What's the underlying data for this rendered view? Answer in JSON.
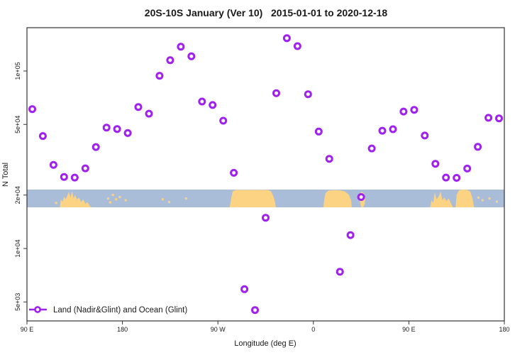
{
  "legend": {
    "label": "Land (Nadir&Glint) and Ocean (Glint)"
  },
  "chart_data": {
    "type": "scatter",
    "title": "20S-10S January (Ver 10)   2015-01-01 to 2020-12-18",
    "xlabel": "Longitude (deg E)",
    "ylabel": "N Total",
    "x_axis": {
      "range_deg": [
        90,
        540
      ],
      "note": "longitude axis wraps: 90E -> 180 -> 90W -> 0 -> 90E -> 180",
      "ticks": [
        {
          "deg": 90,
          "label": "90 E"
        },
        {
          "deg": 180,
          "label": "180"
        },
        {
          "deg": 270,
          "label": "90 W"
        },
        {
          "deg": 360,
          "label": "0"
        },
        {
          "deg": 450,
          "label": "90 E"
        },
        {
          "deg": 540,
          "label": "180"
        }
      ]
    },
    "y_axis": {
      "scale": "log10",
      "range": [
        3900,
        176000
      ],
      "ticks": [
        {
          "value": 5000,
          "label": "5e+03"
        },
        {
          "value": 10000,
          "label": "1e+04"
        },
        {
          "value": 20000,
          "label": "2e+04"
        },
        {
          "value": 50000,
          "label": "5e+04"
        },
        {
          "value": 100000,
          "label": "1e+05"
        }
      ]
    },
    "colors": {
      "marker": "#A020F0",
      "axis": "#333333"
    },
    "series": [
      {
        "name": "Land (Nadir&Glint) and Ocean (Glint)",
        "marker": "open-circle",
        "color": "#A020F0",
        "points": [
          {
            "lon_deg": 95,
            "n_total": 61000
          },
          {
            "lon_deg": 105,
            "n_total": 43000
          },
          {
            "lon_deg": 115,
            "n_total": 29600
          },
          {
            "lon_deg": 125,
            "n_total": 25300
          },
          {
            "lon_deg": 135,
            "n_total": 25100
          },
          {
            "lon_deg": 145,
            "n_total": 28300
          },
          {
            "lon_deg": 155,
            "n_total": 37300
          },
          {
            "lon_deg": 165,
            "n_total": 48000
          },
          {
            "lon_deg": 175,
            "n_total": 47100
          },
          {
            "lon_deg": 185,
            "n_total": 44700
          },
          {
            "lon_deg": 195,
            "n_total": 62700
          },
          {
            "lon_deg": 205,
            "n_total": 57500
          },
          {
            "lon_deg": 215,
            "n_total": 94000
          },
          {
            "lon_deg": 225,
            "n_total": 115000
          },
          {
            "lon_deg": 235,
            "n_total": 137000
          },
          {
            "lon_deg": 245,
            "n_total": 121000
          },
          {
            "lon_deg": 255,
            "n_total": 67300
          },
          {
            "lon_deg": 265,
            "n_total": 64300
          },
          {
            "lon_deg": 275,
            "n_total": 52500
          },
          {
            "lon_deg": 285,
            "n_total": 26700
          },
          {
            "lon_deg": 295,
            "n_total": 5900
          },
          {
            "lon_deg": 305,
            "n_total": 4500
          },
          {
            "lon_deg": 315,
            "n_total": 14900
          },
          {
            "lon_deg": 325,
            "n_total": 75000
          },
          {
            "lon_deg": 335,
            "n_total": 153000
          },
          {
            "lon_deg": 345,
            "n_total": 138000
          },
          {
            "lon_deg": 355,
            "n_total": 74000
          },
          {
            "lon_deg": 365,
            "n_total": 45600
          },
          {
            "lon_deg": 375,
            "n_total": 32000
          },
          {
            "lon_deg": 385,
            "n_total": 7400
          },
          {
            "lon_deg": 395,
            "n_total": 11900
          },
          {
            "lon_deg": 405,
            "n_total": 19500
          },
          {
            "lon_deg": 415,
            "n_total": 36600
          },
          {
            "lon_deg": 425,
            "n_total": 46100
          },
          {
            "lon_deg": 435,
            "n_total": 47000
          },
          {
            "lon_deg": 445,
            "n_total": 59100
          },
          {
            "lon_deg": 455,
            "n_total": 60400
          },
          {
            "lon_deg": 465,
            "n_total": 43300
          },
          {
            "lon_deg": 475,
            "n_total": 30000
          },
          {
            "lon_deg": 485,
            "n_total": 25100
          },
          {
            "lon_deg": 495,
            "n_total": 25000
          },
          {
            "lon_deg": 505,
            "n_total": 28200
          },
          {
            "lon_deg": 515,
            "n_total": 37400
          },
          {
            "lon_deg": 525,
            "n_total": 54500
          },
          {
            "lon_deg": 535,
            "n_total": 54100
          }
        ]
      }
    ],
    "map_band": {
      "description": "World map strip for latitude band 20S-10S drawn across the plot near N = 2e+04",
      "center_value": 20000,
      "ocean_color": "#a9bdd9",
      "land_color": "#fbd383",
      "land_polygons": [
        [
          [
            121,
            1
          ],
          [
            122,
            0.55
          ],
          [
            123.5,
            0.7
          ],
          [
            125,
            0.4
          ],
          [
            126.5,
            0.55
          ],
          [
            128,
            0.35
          ],
          [
            129.5,
            0.12
          ],
          [
            131,
            0.45
          ],
          [
            132.5,
            0.08
          ],
          [
            134,
            0.5
          ],
          [
            135.5,
            0.3
          ],
          [
            137,
            0.55
          ],
          [
            139,
            0.45
          ],
          [
            141,
            0.7
          ],
          [
            143,
            0.55
          ],
          [
            145,
            0.8
          ],
          [
            147,
            0.7
          ],
          [
            149,
            0.9
          ],
          [
            150.5,
            1
          ]
        ],
        [
          [
            281,
            1
          ],
          [
            282.5,
            0.5
          ],
          [
            284,
            0.1
          ],
          [
            287,
            0.02
          ],
          [
            317,
            0.02
          ],
          [
            320,
            0.1
          ],
          [
            322.5,
            0.4
          ],
          [
            324,
            0.75
          ],
          [
            324.5,
            1
          ]
        ],
        [
          [
            369.5,
            1
          ],
          [
            370.2,
            0.55
          ],
          [
            371.5,
            0.2
          ],
          [
            374,
            0.06
          ],
          [
            380,
            0.03
          ],
          [
            386,
            0.05
          ],
          [
            390,
            0.12
          ],
          [
            393.5,
            0.3
          ],
          [
            395.5,
            0.6
          ],
          [
            396.2,
            1
          ]
        ],
        [
          [
            403.5,
            0.3
          ],
          [
            405.5,
            0.12
          ],
          [
            407.5,
            0.2
          ],
          [
            408.8,
            0.45
          ],
          [
            408.5,
            0.8
          ],
          [
            407,
            1.0
          ],
          [
            405,
            1.0
          ],
          [
            403.8,
            0.65
          ]
        ],
        [
          [
            470,
            1
          ],
          [
            471.5,
            0.6
          ],
          [
            473,
            0.75
          ],
          [
            474.5,
            0.15
          ],
          [
            476,
            0.55
          ],
          [
            478,
            0.4
          ],
          [
            480,
            0.1
          ],
          [
            481.5,
            0.6
          ],
          [
            483.5,
            0.45
          ],
          [
            485.5,
            0.65
          ],
          [
            487.5,
            0.5
          ],
          [
            489.5,
            0.75
          ],
          [
            491.5,
            1
          ]
        ],
        [
          [
            494,
            1
          ],
          [
            495,
            0.3
          ],
          [
            497,
            0.06
          ],
          [
            500,
            0.0
          ],
          [
            505,
            0.02
          ],
          [
            508,
            0.12
          ],
          [
            510,
            0.5
          ],
          [
            511.5,
            1
          ]
        ]
      ],
      "land_specks": [
        {
          "lon": 117.5,
          "frac": 0.75
        },
        {
          "lon": 166.5,
          "frac": 0.5
        },
        {
          "lon": 168.5,
          "frac": 0.72
        },
        {
          "lon": 171,
          "frac": 0.3
        },
        {
          "lon": 174,
          "frac": 0.55
        },
        {
          "lon": 177.5,
          "frac": 0.42
        },
        {
          "lon": 183,
          "frac": 0.6
        },
        {
          "lon": 218,
          "frac": 0.55
        },
        {
          "lon": 224,
          "frac": 0.7
        },
        {
          "lon": 240,
          "frac": 0.5
        },
        {
          "lon": 515.5,
          "frac": 0.45
        },
        {
          "lon": 519.5,
          "frac": 0.6
        },
        {
          "lon": 526,
          "frac": 0.5
        },
        {
          "lon": 533,
          "frac": 0.68
        }
      ]
    }
  }
}
